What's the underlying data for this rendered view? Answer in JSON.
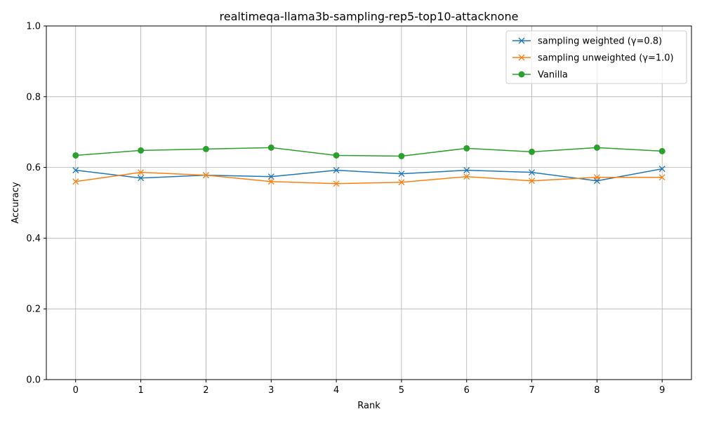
{
  "chart_data": {
    "type": "line",
    "title": "realtimeqa-llama3b-sampling-rep5-top10-attacknone",
    "xlabel": "Rank",
    "ylabel": "Accuracy",
    "x": [
      0,
      1,
      2,
      3,
      4,
      5,
      6,
      7,
      8,
      9
    ],
    "xlim": [
      -0.45,
      9.45
    ],
    "ylim": [
      0.0,
      1.0
    ],
    "xticks": [
      "0",
      "1",
      "2",
      "3",
      "4",
      "5",
      "6",
      "7",
      "8",
      "9"
    ],
    "yticks": [
      "0.0",
      "0.2",
      "0.4",
      "0.6",
      "0.8",
      "1.0"
    ],
    "grid": true,
    "legend_position": "top-right",
    "series": [
      {
        "name": "sampling weighted (γ=0.8)",
        "color": "#1f77b4",
        "marker": "x",
        "values": [
          0.592,
          0.57,
          0.578,
          0.574,
          0.592,
          0.582,
          0.592,
          0.586,
          0.562,
          0.596
        ]
      },
      {
        "name": "sampling unweighted (γ=1.0)",
        "color": "#ff7f0e",
        "marker": "x",
        "values": [
          0.56,
          0.586,
          0.578,
          0.56,
          0.554,
          0.558,
          0.574,
          0.562,
          0.572,
          0.572
        ]
      },
      {
        "name": "Vanilla",
        "color": "#2ca02c",
        "marker": "o",
        "values": [
          0.634,
          0.648,
          0.652,
          0.656,
          0.634,
          0.632,
          0.654,
          0.644,
          0.656,
          0.646
        ]
      }
    ]
  }
}
